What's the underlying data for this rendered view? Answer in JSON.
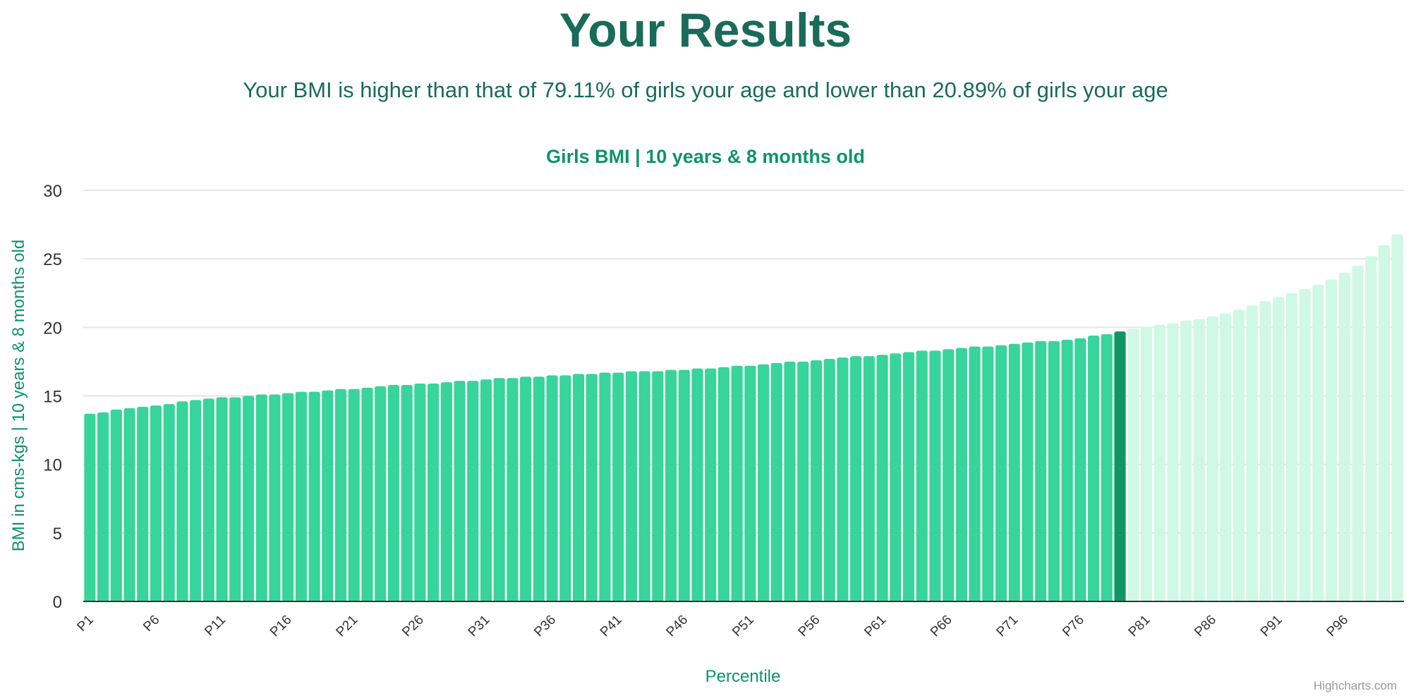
{
  "heading": "Your Results",
  "summary": "Your BMI is higher than that of 79.11% of girls your age and lower than 20.89% of girls your age",
  "credit": "Highcharts.com",
  "colors": {
    "heading": "#1a6b59",
    "accent": "#0e9466",
    "bar": "#37d49b",
    "bar_highlight": "#119563",
    "bar_above": "#cff8e6",
    "grid": "#e6e6e6",
    "axis_line": "#333333",
    "credit": "#999999"
  },
  "chart_data": {
    "type": "bar",
    "title": "Girls BMI | 10 years & 8 months old",
    "xlabel": "Percentile",
    "ylabel": "BMI in cms-kgs | 10 years & 8 months old",
    "ylim": [
      0,
      30
    ],
    "yticks": [
      "0",
      "5",
      "10",
      "15",
      "20",
      "25",
      "30"
    ],
    "grid": true,
    "legend": "none",
    "highlight_category": "P79",
    "categories": [
      "P1",
      "P2",
      "P3",
      "P4",
      "P5",
      "P6",
      "P7",
      "P8",
      "P9",
      "P10",
      "P11",
      "P12",
      "P13",
      "P14",
      "P15",
      "P16",
      "P17",
      "P18",
      "P19",
      "P20",
      "P21",
      "P22",
      "P23",
      "P24",
      "P25",
      "P26",
      "P27",
      "P28",
      "P29",
      "P30",
      "P31",
      "P32",
      "P33",
      "P34",
      "P35",
      "P36",
      "P37",
      "P38",
      "P39",
      "P40",
      "P41",
      "P42",
      "P43",
      "P44",
      "P45",
      "P46",
      "P47",
      "P48",
      "P49",
      "P50",
      "P51",
      "P52",
      "P53",
      "P54",
      "P55",
      "P56",
      "P57",
      "P58",
      "P59",
      "P60",
      "P61",
      "P62",
      "P63",
      "P64",
      "P65",
      "P66",
      "P67",
      "P68",
      "P69",
      "P70",
      "P71",
      "P72",
      "P73",
      "P74",
      "P75",
      "P76",
      "P77",
      "P78",
      "P79",
      "P80",
      "P81",
      "P82",
      "P83",
      "P84",
      "P85",
      "P86",
      "P87",
      "P88",
      "P89",
      "P90",
      "P91",
      "P92",
      "P93",
      "P94",
      "P95",
      "P96",
      "P97",
      "P98",
      "P99",
      "P100"
    ],
    "tick_labels": [
      "P1",
      "P6",
      "P11",
      "P16",
      "P21",
      "P26",
      "P31",
      "P36",
      "P41",
      "P46",
      "P51",
      "P56",
      "P61",
      "P66",
      "P71",
      "P76",
      "P81",
      "P86",
      "P91",
      "P96"
    ],
    "values": [
      13.7,
      13.8,
      14.0,
      14.1,
      14.2,
      14.3,
      14.4,
      14.6,
      14.7,
      14.8,
      14.9,
      14.9,
      15.0,
      15.1,
      15.1,
      15.2,
      15.3,
      15.3,
      15.4,
      15.5,
      15.5,
      15.6,
      15.7,
      15.8,
      15.8,
      15.9,
      15.9,
      16.0,
      16.1,
      16.1,
      16.2,
      16.3,
      16.3,
      16.4,
      16.4,
      16.5,
      16.5,
      16.6,
      16.6,
      16.7,
      16.7,
      16.8,
      16.8,
      16.8,
      16.9,
      16.9,
      17.0,
      17.0,
      17.1,
      17.2,
      17.2,
      17.3,
      17.4,
      17.5,
      17.5,
      17.6,
      17.7,
      17.8,
      17.9,
      17.9,
      18.0,
      18.1,
      18.2,
      18.3,
      18.3,
      18.4,
      18.5,
      18.6,
      18.6,
      18.7,
      18.8,
      18.9,
      19.0,
      19.0,
      19.1,
      19.2,
      19.4,
      19.5,
      19.7,
      19.9,
      20.0,
      20.2,
      20.3,
      20.5,
      20.6,
      20.8,
      21.0,
      21.3,
      21.6,
      21.9,
      22.2,
      22.5,
      22.8,
      23.1,
      23.5,
      24.0,
      24.5,
      25.2,
      26.0,
      26.8
    ]
  }
}
